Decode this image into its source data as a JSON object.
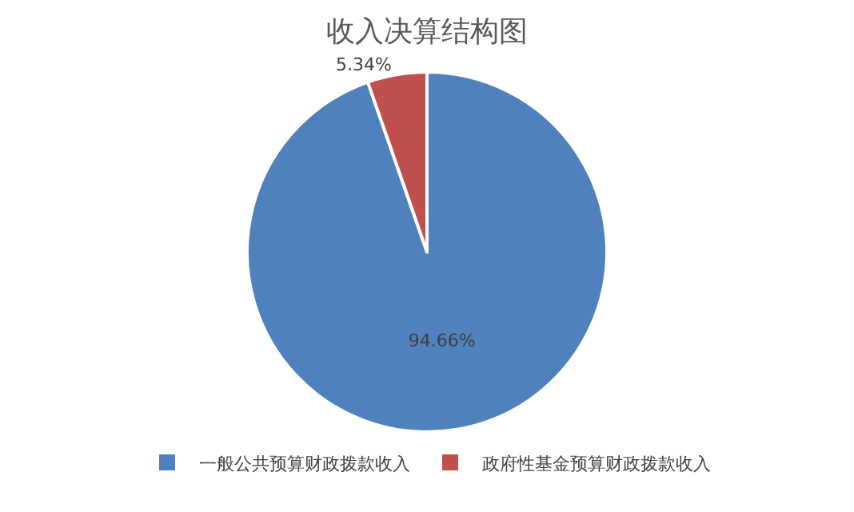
{
  "chart_data": {
    "type": "pie",
    "title": "收入决算结构图",
    "categories": [
      "一般公共预算财政拨款收入",
      "政府性基金预算财政拨款收入"
    ],
    "values": [
      94.66,
      5.34
    ],
    "colors": [
      "#4f81bd",
      "#c0504d"
    ],
    "value_labels": [
      "94.66%",
      "5.34%"
    ],
    "legend": "bottom"
  }
}
